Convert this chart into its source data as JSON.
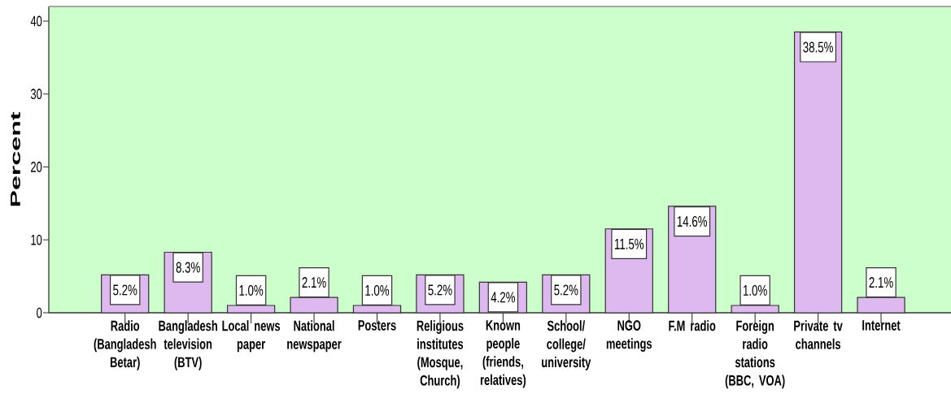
{
  "chart_data": {
    "type": "bar",
    "ylabel": "Percent",
    "categories": [
      "Radio (Bangladesh Betar)",
      "Bangladesh television (BTV)",
      "Local news paper",
      "National newspaper",
      "Posters",
      "Religious institutes (Mosque, Church)",
      "Known people (friends, relatives)",
      "School/ college/ university",
      "NGO meetings",
      "F.M radio",
      "Foreign radio stations (BBC, VOA)",
      "Private tv channels",
      "Internet"
    ],
    "values": [
      5.2,
      8.3,
      1.0,
      2.1,
      1.0,
      5.2,
      4.2,
      5.2,
      11.5,
      14.6,
      1.0,
      38.5,
      2.1
    ],
    "color": "#ddb9f0",
    "value_labels": [
      "5.2%",
      "8.3%",
      "1.0%",
      "2.1%",
      "1.0%",
      "5.2%",
      "4.2%",
      "5.2%",
      "11.5%",
      "14.6%",
      "1.0%",
      "38.5%",
      "2.1%"
    ],
    "ylim": [
      0,
      42
    ],
    "yticks": [
      0,
      10,
      20,
      30,
      40
    ]
  }
}
